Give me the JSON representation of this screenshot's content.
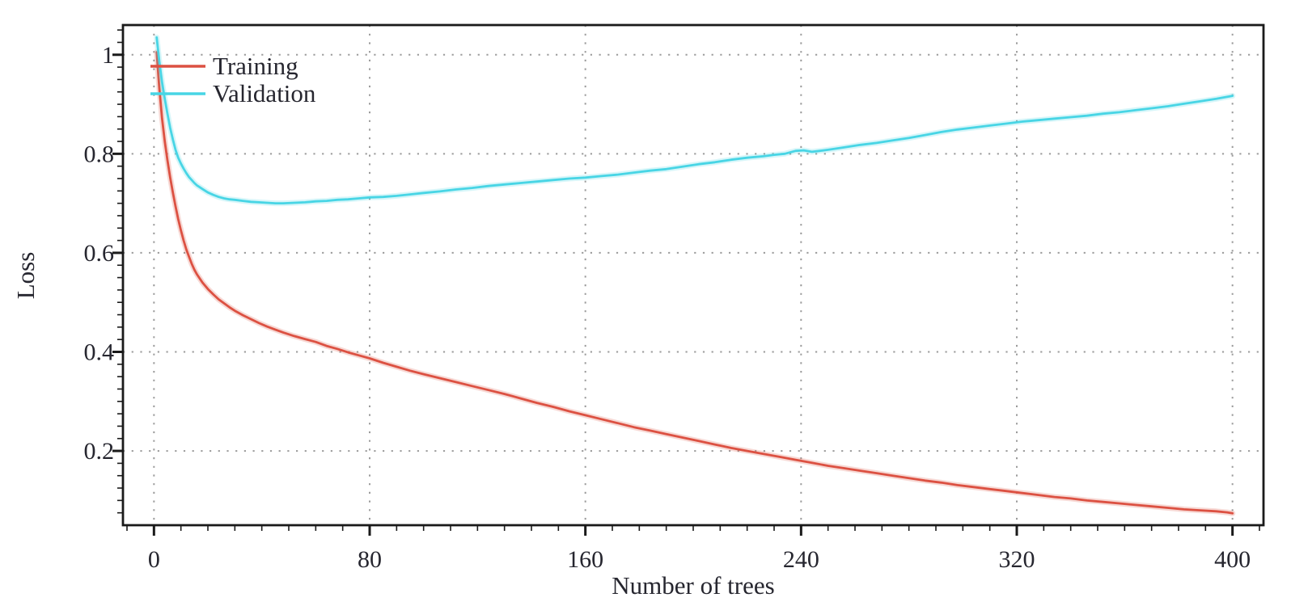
{
  "style": {
    "background": "#ffffff",
    "frame_color": "#1a1a1a",
    "grid_color": "#9b9b9b",
    "tick_color": "#1a1a1a",
    "text_color": "#26262f",
    "training_color": "#dc5142",
    "validation_color": "#48d5e5"
  },
  "legend": {
    "items": [
      {
        "label": "Training",
        "color": "#dc5142"
      },
      {
        "label": "Validation",
        "color": "#48d5e5"
      }
    ]
  },
  "chart_data": {
    "type": "line",
    "title": "",
    "xlabel": "Number of trees",
    "ylabel": "Loss",
    "xlim": [
      -11.5,
      411.5
    ],
    "ylim": [
      0.05,
      1.06
    ],
    "x_major_ticks": [
      0,
      80,
      160,
      240,
      320,
      400
    ],
    "x_tick_labels": [
      "0",
      "80",
      "160",
      "240",
      "320",
      "400"
    ],
    "x_minor_step": 10,
    "y_major_ticks": [
      0.2,
      0.4,
      0.6,
      0.8,
      1.0
    ],
    "y_tick_labels": [
      "0.2",
      "0.4",
      "0.6",
      "0.8",
      "1"
    ],
    "y_minor_step": 0.025,
    "grid": "dotted gray at major ticks, both axes",
    "legend_position": "top-left inside plot",
    "series": [
      {
        "name": "Training",
        "color": "#dc5142",
        "points": [
          [
            1,
            1.005
          ],
          [
            2,
            0.932
          ],
          [
            3,
            0.872
          ],
          [
            4,
            0.825
          ],
          [
            5,
            0.787
          ],
          [
            6,
            0.753
          ],
          [
            7,
            0.722
          ],
          [
            8,
            0.694
          ],
          [
            9,
            0.668
          ],
          [
            10,
            0.645
          ],
          [
            11,
            0.625
          ],
          [
            12,
            0.607
          ],
          [
            13,
            0.592
          ],
          [
            14,
            0.578
          ],
          [
            15,
            0.566
          ],
          [
            16,
            0.556
          ],
          [
            18,
            0.54
          ],
          [
            20,
            0.527
          ],
          [
            22,
            0.516
          ],
          [
            24,
            0.506
          ],
          [
            26,
            0.498
          ],
          [
            28,
            0.49
          ],
          [
            30,
            0.483
          ],
          [
            33,
            0.474
          ],
          [
            36,
            0.466
          ],
          [
            39,
            0.458
          ],
          [
            42,
            0.451
          ],
          [
            45,
            0.445
          ],
          [
            48,
            0.439
          ],
          [
            52,
            0.432
          ],
          [
            56,
            0.426
          ],
          [
            60,
            0.42
          ],
          [
            64,
            0.412
          ],
          [
            68,
            0.406
          ],
          [
            72,
            0.399
          ],
          [
            76,
            0.393
          ],
          [
            80,
            0.387
          ],
          [
            85,
            0.378
          ],
          [
            90,
            0.37
          ],
          [
            95,
            0.362
          ],
          [
            100,
            0.355
          ],
          [
            106,
            0.347
          ],
          [
            112,
            0.339
          ],
          [
            118,
            0.331
          ],
          [
            124,
            0.323
          ],
          [
            130,
            0.315
          ],
          [
            136,
            0.306
          ],
          [
            142,
            0.297
          ],
          [
            148,
            0.289
          ],
          [
            154,
            0.28
          ],
          [
            160,
            0.272
          ],
          [
            166,
            0.264
          ],
          [
            172,
            0.256
          ],
          [
            178,
            0.248
          ],
          [
            184,
            0.241
          ],
          [
            190,
            0.234
          ],
          [
            196,
            0.227
          ],
          [
            202,
            0.22
          ],
          [
            208,
            0.213
          ],
          [
            214,
            0.206
          ],
          [
            220,
            0.2
          ],
          [
            226,
            0.194
          ],
          [
            232,
            0.188
          ],
          [
            238,
            0.182
          ],
          [
            244,
            0.176
          ],
          [
            250,
            0.17
          ],
          [
            256,
            0.165
          ],
          [
            262,
            0.16
          ],
          [
            268,
            0.155
          ],
          [
            274,
            0.15
          ],
          [
            280,
            0.145
          ],
          [
            286,
            0.14
          ],
          [
            292,
            0.136
          ],
          [
            298,
            0.131
          ],
          [
            304,
            0.127
          ],
          [
            310,
            0.123
          ],
          [
            316,
            0.119
          ],
          [
            322,
            0.115
          ],
          [
            328,
            0.111
          ],
          [
            334,
            0.107
          ],
          [
            340,
            0.104
          ],
          [
            346,
            0.1
          ],
          [
            352,
            0.097
          ],
          [
            358,
            0.094
          ],
          [
            364,
            0.091
          ],
          [
            370,
            0.088
          ],
          [
            376,
            0.085
          ],
          [
            382,
            0.082
          ],
          [
            388,
            0.08
          ],
          [
            394,
            0.078
          ],
          [
            398,
            0.076
          ],
          [
            400,
            0.074
          ]
        ]
      },
      {
        "name": "Validation",
        "color": "#48d5e5",
        "points": [
          [
            1,
            1.035
          ],
          [
            2,
            0.986
          ],
          [
            3,
            0.945
          ],
          [
            4,
            0.911
          ],
          [
            5,
            0.881
          ],
          [
            6,
            0.853
          ],
          [
            7,
            0.829
          ],
          [
            8,
            0.808
          ],
          [
            9,
            0.792
          ],
          [
            10,
            0.78
          ],
          [
            11,
            0.77
          ],
          [
            12,
            0.761
          ],
          [
            13,
            0.753
          ],
          [
            14,
            0.747
          ],
          [
            15,
            0.741
          ],
          [
            16,
            0.736
          ],
          [
            18,
            0.729
          ],
          [
            20,
            0.722
          ],
          [
            22,
            0.717
          ],
          [
            24,
            0.713
          ],
          [
            26,
            0.71
          ],
          [
            28,
            0.708
          ],
          [
            30,
            0.707
          ],
          [
            33,
            0.705
          ],
          [
            36,
            0.703
          ],
          [
            39,
            0.702
          ],
          [
            42,
            0.701
          ],
          [
            45,
            0.7
          ],
          [
            48,
            0.7
          ],
          [
            52,
            0.701
          ],
          [
            56,
            0.702
          ],
          [
            60,
            0.704
          ],
          [
            64,
            0.705
          ],
          [
            68,
            0.707
          ],
          [
            72,
            0.708
          ],
          [
            76,
            0.71
          ],
          [
            80,
            0.712
          ],
          [
            85,
            0.713
          ],
          [
            90,
            0.715
          ],
          [
            95,
            0.718
          ],
          [
            100,
            0.721
          ],
          [
            106,
            0.724
          ],
          [
            112,
            0.728
          ],
          [
            118,
            0.731
          ],
          [
            124,
            0.735
          ],
          [
            130,
            0.738
          ],
          [
            136,
            0.741
          ],
          [
            142,
            0.744
          ],
          [
            148,
            0.747
          ],
          [
            154,
            0.75
          ],
          [
            160,
            0.752
          ],
          [
            166,
            0.755
          ],
          [
            172,
            0.758
          ],
          [
            178,
            0.762
          ],
          [
            184,
            0.766
          ],
          [
            190,
            0.769
          ],
          [
            196,
            0.774
          ],
          [
            202,
            0.779
          ],
          [
            208,
            0.783
          ],
          [
            214,
            0.788
          ],
          [
            220,
            0.792
          ],
          [
            226,
            0.795
          ],
          [
            230,
            0.798
          ],
          [
            234,
            0.8
          ],
          [
            238,
            0.806
          ],
          [
            241,
            0.807
          ],
          [
            244,
            0.804
          ],
          [
            247,
            0.806
          ],
          [
            250,
            0.808
          ],
          [
            256,
            0.813
          ],
          [
            262,
            0.818
          ],
          [
            268,
            0.822
          ],
          [
            274,
            0.827
          ],
          [
            280,
            0.832
          ],
          [
            286,
            0.838
          ],
          [
            292,
            0.844
          ],
          [
            298,
            0.849
          ],
          [
            304,
            0.853
          ],
          [
            310,
            0.857
          ],
          [
            316,
            0.861
          ],
          [
            322,
            0.865
          ],
          [
            328,
            0.868
          ],
          [
            334,
            0.871
          ],
          [
            340,
            0.874
          ],
          [
            346,
            0.877
          ],
          [
            352,
            0.881
          ],
          [
            358,
            0.884
          ],
          [
            364,
            0.888
          ],
          [
            370,
            0.892
          ],
          [
            376,
            0.896
          ],
          [
            382,
            0.901
          ],
          [
            388,
            0.906
          ],
          [
            394,
            0.911
          ],
          [
            400,
            0.917
          ]
        ]
      }
    ]
  }
}
